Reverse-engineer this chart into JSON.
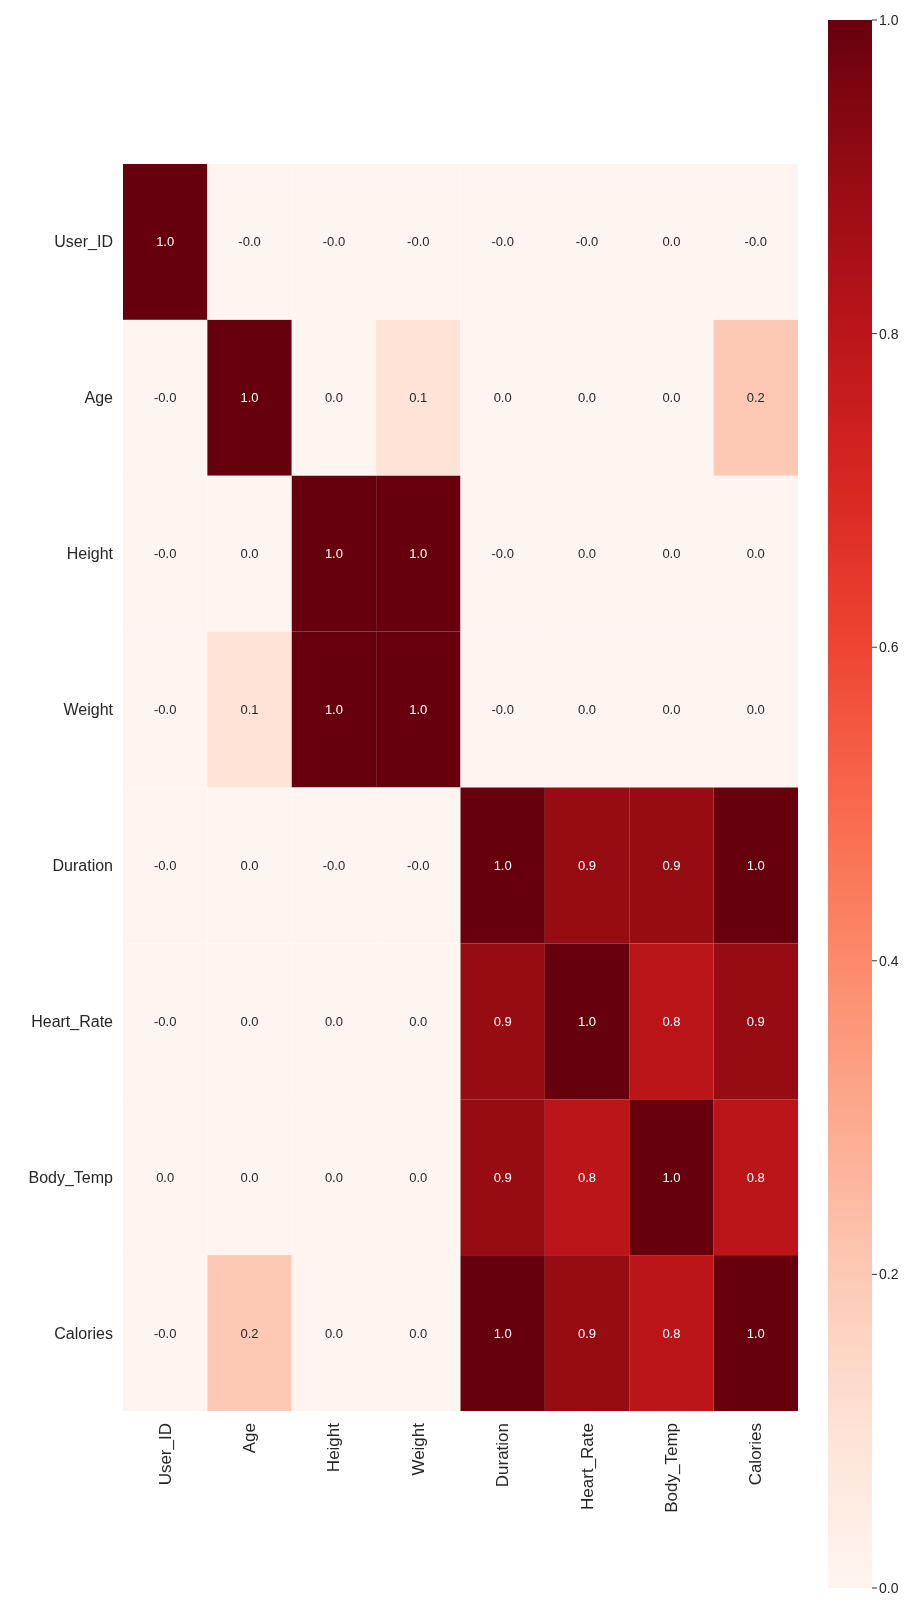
{
  "chart_data": {
    "type": "heatmap",
    "categories": [
      "User_ID",
      "Age",
      "Height",
      "Weight",
      "Duration",
      "Heart_Rate",
      "Body_Temp",
      "Calories"
    ],
    "y_categories": [
      "User_ID",
      "Age",
      "Height",
      "Weight",
      "Duration",
      "Heart_Rate",
      "Body_Temp",
      "Calories"
    ],
    "cells": [
      [
        1.0,
        0,
        0,
        0,
        0,
        0,
        0,
        0
      ],
      [
        0,
        1.0,
        0,
        0.1,
        0,
        0,
        0,
        0.2
      ],
      [
        0,
        0,
        1.0,
        1.0,
        0,
        0,
        0,
        0
      ],
      [
        0,
        0.1,
        1.0,
        1.0,
        0,
        0,
        0,
        0
      ],
      [
        0,
        0,
        0,
        0,
        1.0,
        0.9,
        0.9,
        1.0
      ],
      [
        0,
        0,
        0,
        0,
        0.9,
        1.0,
        0.8,
        0.9
      ],
      [
        0,
        0,
        0,
        0,
        0.9,
        0.8,
        1.0,
        0.8
      ],
      [
        0,
        0.2,
        0,
        0,
        1.0,
        0.9,
        0.8,
        1.0
      ]
    ],
    "cell_labels": [
      [
        "1.0",
        "-0.0",
        "-0.0",
        "-0.0",
        "-0.0",
        "-0.0",
        "0.0",
        "-0.0"
      ],
      [
        "-0.0",
        "1.0",
        "0.0",
        "0.1",
        "0.0",
        "0.0",
        "0.0",
        "0.2"
      ],
      [
        "-0.0",
        "0.0",
        "1.0",
        "1.0",
        "-0.0",
        "0.0",
        "0.0",
        "0.0"
      ],
      [
        "-0.0",
        "0.1",
        "1.0",
        "1.0",
        "-0.0",
        "0.0",
        "0.0",
        "0.0"
      ],
      [
        "-0.0",
        "0.0",
        "-0.0",
        "-0.0",
        "1.0",
        "0.9",
        "0.9",
        "1.0"
      ],
      [
        "-0.0",
        "0.0",
        "0.0",
        "0.0",
        "0.9",
        "1.0",
        "0.8",
        "0.9"
      ],
      [
        "0.0",
        "0.0",
        "0.0",
        "0.0",
        "0.9",
        "0.8",
        "1.0",
        "0.8"
      ],
      [
        "-0.0",
        "0.2",
        "0.0",
        "0.0",
        "1.0",
        "0.9",
        "0.8",
        "1.0"
      ]
    ],
    "clim": [
      0,
      1
    ],
    "cticks": [
      {
        "value": 0,
        "label": "0.0"
      },
      {
        "value": 0.2,
        "label": "0.2"
      },
      {
        "value": 0.4,
        "label": "0.4"
      },
      {
        "value": 0.6,
        "label": "0.6"
      },
      {
        "value": 0.8,
        "label": "0.8"
      },
      {
        "value": 1,
        "label": "1.0"
      }
    ]
  }
}
